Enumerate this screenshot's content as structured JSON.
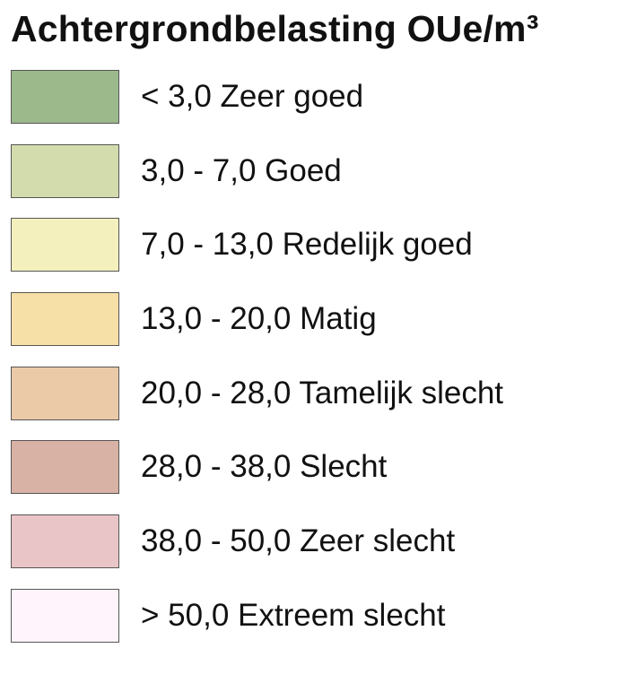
{
  "legend": {
    "title": "Achtergrondbelasting OUe/m³",
    "items": [
      {
        "label": "< 3,0 Zeer goed",
        "color": "#9cb98b"
      },
      {
        "label": "3,0 - 7,0 Goed",
        "color": "#d3dcad"
      },
      {
        "label": "7,0 - 13,0 Redelijk goed",
        "color": "#f4f0bd"
      },
      {
        "label": "13,0 - 20,0 Matig",
        "color": "#f6e0a8"
      },
      {
        "label": "20,0 - 28,0 Tamelijk slecht",
        "color": "#ebcaa8"
      },
      {
        "label": "28,0 - 38,0 Slecht",
        "color": "#d8b2a5"
      },
      {
        "label": "38,0 - 50,0 Zeer slecht",
        "color": "#e9c5c8"
      },
      {
        "label": "> 50,0 Extreem slecht",
        "color": "#fff4fb"
      }
    ]
  }
}
